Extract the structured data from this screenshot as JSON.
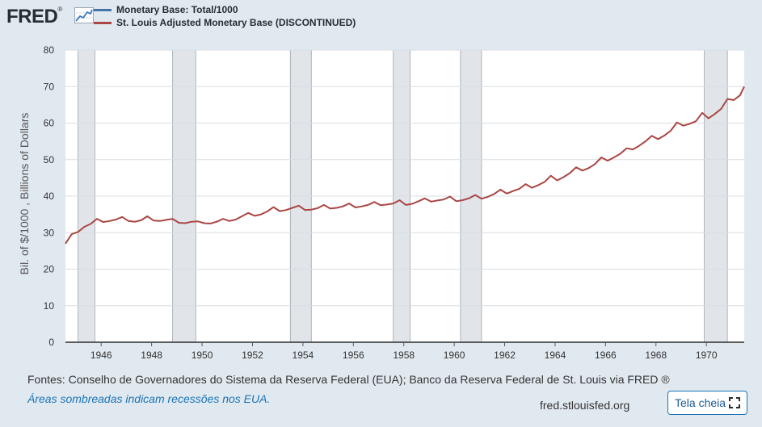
{
  "header": {
    "logo_text": "FRED",
    "logo_mark": "®",
    "logo_icon": "line-graph-icon"
  },
  "chart_data": {
    "type": "line",
    "ylabel": "Bil. of $/1000 , Billions of Dollars",
    "ylim": [
      0,
      80
    ],
    "yticks": [
      0,
      10,
      20,
      30,
      40,
      50,
      60,
      70,
      80
    ],
    "xlim": [
      "1944-08-01",
      "1971-07-01"
    ],
    "xticks": [
      "1946",
      "1948",
      "1950",
      "1952",
      "1954",
      "1956",
      "1958",
      "1960",
      "1962",
      "1964",
      "1966",
      "1968",
      "1970"
    ],
    "grid": "horizontal",
    "legend": "top-left",
    "series": [
      {
        "name": "Monetary Base: Total/1000",
        "color": "#4572a7",
        "values": []
      },
      {
        "name": "St. Louis Adjusted Monetary Base (DISCONTINUED)",
        "color": "#aa4643",
        "x": [
          "1944-08",
          "1944-11",
          "1945-02",
          "1945-05",
          "1945-08",
          "1945-11",
          "1946-02",
          "1946-05",
          "1946-08",
          "1946-11",
          "1947-02",
          "1947-05",
          "1947-08",
          "1947-11",
          "1948-02",
          "1948-05",
          "1948-08",
          "1948-11",
          "1949-02",
          "1949-05",
          "1949-08",
          "1949-11",
          "1950-02",
          "1950-05",
          "1950-08",
          "1950-11",
          "1951-02",
          "1951-05",
          "1951-08",
          "1951-11",
          "1952-02",
          "1952-05",
          "1952-08",
          "1952-11",
          "1953-02",
          "1953-05",
          "1953-08",
          "1953-11",
          "1954-02",
          "1954-05",
          "1954-08",
          "1954-11",
          "1955-02",
          "1955-05",
          "1955-08",
          "1955-11",
          "1956-02",
          "1956-05",
          "1956-08",
          "1956-11",
          "1957-02",
          "1957-05",
          "1957-08",
          "1957-11",
          "1958-02",
          "1958-05",
          "1958-08",
          "1958-11",
          "1959-02",
          "1959-05",
          "1959-08",
          "1959-11",
          "1960-02",
          "1960-05",
          "1960-08",
          "1960-11",
          "1961-02",
          "1961-05",
          "1961-08",
          "1961-11",
          "1962-02",
          "1962-05",
          "1962-08",
          "1962-11",
          "1963-02",
          "1963-05",
          "1963-08",
          "1963-11",
          "1964-02",
          "1964-05",
          "1964-08",
          "1964-11",
          "1965-02",
          "1965-05",
          "1965-08",
          "1965-11",
          "1966-02",
          "1966-05",
          "1966-08",
          "1966-11",
          "1967-02",
          "1967-05",
          "1967-08",
          "1967-11",
          "1968-02",
          "1968-05",
          "1968-08",
          "1968-11",
          "1969-02",
          "1969-05",
          "1969-08",
          "1969-11",
          "1970-02",
          "1970-05",
          "1970-08",
          "1970-11",
          "1971-02",
          "1971-05",
          "1971-07"
        ],
        "values": [
          27.0,
          29.6,
          30.2,
          31.6,
          32.4,
          33.8,
          32.9,
          33.2,
          33.6,
          34.3,
          33.2,
          33.0,
          33.4,
          34.5,
          33.3,
          33.2,
          33.5,
          33.8,
          32.7,
          32.6,
          33.0,
          33.1,
          32.6,
          32.5,
          33.0,
          33.8,
          33.2,
          33.6,
          34.5,
          35.4,
          34.6,
          35.0,
          35.8,
          37.0,
          35.9,
          36.2,
          36.8,
          37.4,
          36.2,
          36.3,
          36.7,
          37.6,
          36.6,
          36.8,
          37.2,
          38.0,
          36.9,
          37.2,
          37.6,
          38.4,
          37.5,
          37.7,
          38.0,
          38.9,
          37.6,
          37.9,
          38.6,
          39.4,
          38.5,
          38.8,
          39.1,
          39.9,
          38.6,
          38.9,
          39.4,
          40.3,
          39.3,
          39.8,
          40.6,
          41.8,
          40.7,
          41.4,
          42.0,
          43.3,
          42.3,
          43.0,
          43.9,
          45.6,
          44.3,
          45.2,
          46.3,
          47.9,
          47.0,
          47.7,
          48.8,
          50.6,
          49.7,
          50.6,
          51.6,
          53.1,
          52.8,
          53.8,
          55.0,
          56.5,
          55.6,
          56.6,
          57.9,
          60.2,
          59.3,
          59.8,
          60.5,
          62.8,
          61.3,
          62.5,
          63.9,
          66.6,
          66.3,
          67.6,
          70.0
        ]
      }
    ],
    "recessions": [
      [
        "1945-02",
        "1945-10"
      ],
      [
        "1948-11",
        "1949-10"
      ],
      [
        "1953-07",
        "1954-05"
      ],
      [
        "1957-08",
        "1958-04"
      ],
      [
        "1960-04",
        "1961-02"
      ],
      [
        "1969-12",
        "1970-11"
      ]
    ]
  },
  "footer": {
    "source": "Fontes: Conselho de Governadores do Sistema da Reserva Federal (EUA); Banco da Reserva Federal de St. Louis via FRED ®",
    "recession_note": "Áreas sombreadas indicam recessões nos EUA.",
    "url": "fred.stlouisfed.org",
    "fullscreen_label": "Tela cheia",
    "fullscreen_icon": "fullscreen-icon"
  }
}
